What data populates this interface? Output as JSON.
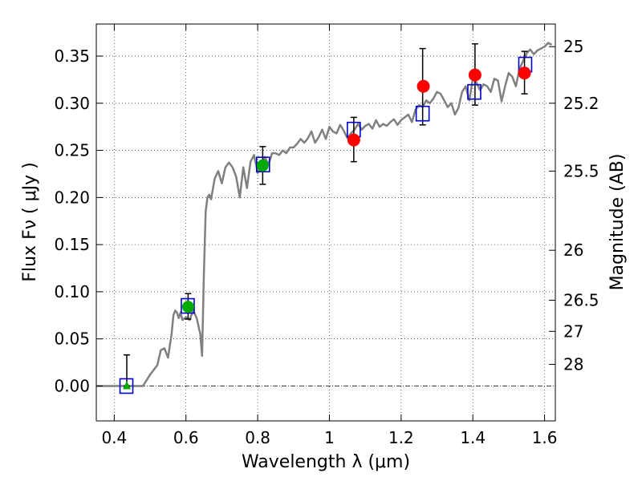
{
  "chart_data": {
    "type": "scatter",
    "xlabel": "Wavelength  λ (μm)",
    "ylabel": "Flux  Fν  ( μJy )",
    "y2label": "Magnitude (AB)",
    "xlim": [
      0.35,
      1.63
    ],
    "ylim": [
      -0.037,
      0.384
    ],
    "grid": true,
    "x_ticks": [
      {
        "value": 0.4,
        "label": "0.4"
      },
      {
        "value": 0.6,
        "label": "0.6"
      },
      {
        "value": 0.8,
        "label": "0.8"
      },
      {
        "value": 1.0,
        "label": "1"
      },
      {
        "value": 1.2,
        "label": "1.2"
      },
      {
        "value": 1.4,
        "label": "1.4"
      },
      {
        "value": 1.6,
        "label": "1.6"
      }
    ],
    "y_ticks": [
      {
        "value": 0.0,
        "label": "0.00"
      },
      {
        "value": 0.05,
        "label": "0.05"
      },
      {
        "value": 0.1,
        "label": "0.10"
      },
      {
        "value": 0.15,
        "label": "0.15"
      },
      {
        "value": 0.2,
        "label": "0.20"
      },
      {
        "value": 0.25,
        "label": "0.25"
      },
      {
        "value": 0.3,
        "label": "0.30"
      },
      {
        "value": 0.35,
        "label": "0.35"
      }
    ],
    "mag_ticks": [
      {
        "flux": 0.36,
        "label": "25"
      },
      {
        "flux": 0.3,
        "label": "25.2"
      },
      {
        "flux": 0.228,
        "label": "25.5"
      },
      {
        "flux": 0.144,
        "label": "26"
      },
      {
        "flux": 0.091,
        "label": "26.5"
      },
      {
        "flux": 0.058,
        "label": "27"
      },
      {
        "flux": 0.023,
        "label": "28"
      }
    ],
    "model_spectrum": {
      "color": "#808080",
      "x": [
        0.35,
        0.48,
        0.5,
        0.52,
        0.53,
        0.54,
        0.55,
        0.56,
        0.565,
        0.57,
        0.575,
        0.58,
        0.585,
        0.59,
        0.6,
        0.61,
        0.62,
        0.63,
        0.64,
        0.645,
        0.65,
        0.655,
        0.66,
        0.665,
        0.67,
        0.68,
        0.69,
        0.7,
        0.71,
        0.72,
        0.73,
        0.74,
        0.75,
        0.76,
        0.77,
        0.78,
        0.79,
        0.8,
        0.81,
        0.82,
        0.83,
        0.84,
        0.85,
        0.86,
        0.87,
        0.88,
        0.89,
        0.9,
        0.91,
        0.92,
        0.93,
        0.94,
        0.95,
        0.96,
        0.97,
        0.98,
        0.99,
        1.0,
        1.01,
        1.02,
        1.03,
        1.04,
        1.05,
        1.06,
        1.07,
        1.08,
        1.09,
        1.1,
        1.11,
        1.12,
        1.13,
        1.14,
        1.15,
        1.16,
        1.17,
        1.18,
        1.19,
        1.2,
        1.21,
        1.22,
        1.23,
        1.24,
        1.25,
        1.26,
        1.27,
        1.28,
        1.29,
        1.3,
        1.31,
        1.32,
        1.33,
        1.34,
        1.35,
        1.36,
        1.37,
        1.38,
        1.39,
        1.4,
        1.41,
        1.42,
        1.43,
        1.44,
        1.45,
        1.46,
        1.47,
        1.48,
        1.49,
        1.5,
        1.51,
        1.52,
        1.53,
        1.54,
        1.55,
        1.56,
        1.57,
        1.58,
        1.59,
        1.6,
        1.61,
        1.62
      ],
      "y": [
        0.0,
        0.0,
        0.012,
        0.022,
        0.038,
        0.04,
        0.03,
        0.055,
        0.075,
        0.08,
        0.078,
        0.072,
        0.078,
        0.07,
        0.073,
        0.07,
        0.08,
        0.072,
        0.055,
        0.032,
        0.12,
        0.185,
        0.2,
        0.203,
        0.198,
        0.22,
        0.228,
        0.215,
        0.232,
        0.237,
        0.232,
        0.222,
        0.2,
        0.232,
        0.21,
        0.238,
        0.245,
        0.226,
        0.233,
        0.243,
        0.235,
        0.247,
        0.247,
        0.245,
        0.25,
        0.247,
        0.253,
        0.253,
        0.257,
        0.262,
        0.258,
        0.263,
        0.27,
        0.258,
        0.264,
        0.272,
        0.262,
        0.275,
        0.27,
        0.268,
        0.277,
        0.271,
        0.263,
        0.268,
        0.272,
        0.278,
        0.272,
        0.276,
        0.278,
        0.273,
        0.282,
        0.275,
        0.278,
        0.276,
        0.28,
        0.283,
        0.277,
        0.282,
        0.285,
        0.288,
        0.28,
        0.293,
        0.298,
        0.296,
        0.303,
        0.3,
        0.305,
        0.312,
        0.31,
        0.303,
        0.296,
        0.3,
        0.288,
        0.295,
        0.312,
        0.318,
        0.303,
        0.326,
        0.322,
        0.314,
        0.32,
        0.318,
        0.312,
        0.326,
        0.324,
        0.302,
        0.318,
        0.332,
        0.328,
        0.318,
        0.336,
        0.345,
        0.353,
        0.357,
        0.352,
        0.356,
        0.358,
        0.36,
        0.364,
        0.362
      ]
    },
    "error_bars": [
      {
        "x": 0.435,
        "low": 0.0,
        "high": 0.033
      },
      {
        "x": 0.606,
        "low": 0.071,
        "high": 0.098
      },
      {
        "x": 0.814,
        "low": 0.214,
        "high": 0.254
      },
      {
        "x": 1.068,
        "low": 0.238,
        "high": 0.285
      },
      {
        "x": 1.26,
        "low": 0.277,
        "high": 0.358
      },
      {
        "x": 1.406,
        "low": 0.298,
        "high": 0.363
      },
      {
        "x": 1.544,
        "low": 0.31,
        "high": 0.355
      }
    ],
    "model_boxes": [
      {
        "x": 0.434,
        "y": 0.0
      },
      {
        "x": 0.605,
        "y": 0.085
      },
      {
        "x": 0.815,
        "y": 0.235
      },
      {
        "x": 1.068,
        "y": 0.272
      },
      {
        "x": 1.26,
        "y": 0.289
      },
      {
        "x": 1.404,
        "y": 0.312
      },
      {
        "x": 1.546,
        "y": 0.341
      }
    ],
    "green_points": [
      {
        "x": 0.606,
        "y": 0.084
      },
      {
        "x": 0.814,
        "y": 0.234
      }
    ],
    "green_triangles": [
      {
        "x": 0.435,
        "y": 0.0
      }
    ],
    "red_points": [
      {
        "x": 1.068,
        "y": 0.261
      },
      {
        "x": 1.262,
        "y": 0.318
      },
      {
        "x": 1.406,
        "y": 0.33
      },
      {
        "x": 1.544,
        "y": 0.332
      }
    ],
    "colors": {
      "model_box": "#0000cc",
      "green": "#00aa00",
      "red": "#ff0000",
      "errorbar": "#000000",
      "grid": "#000000"
    }
  }
}
